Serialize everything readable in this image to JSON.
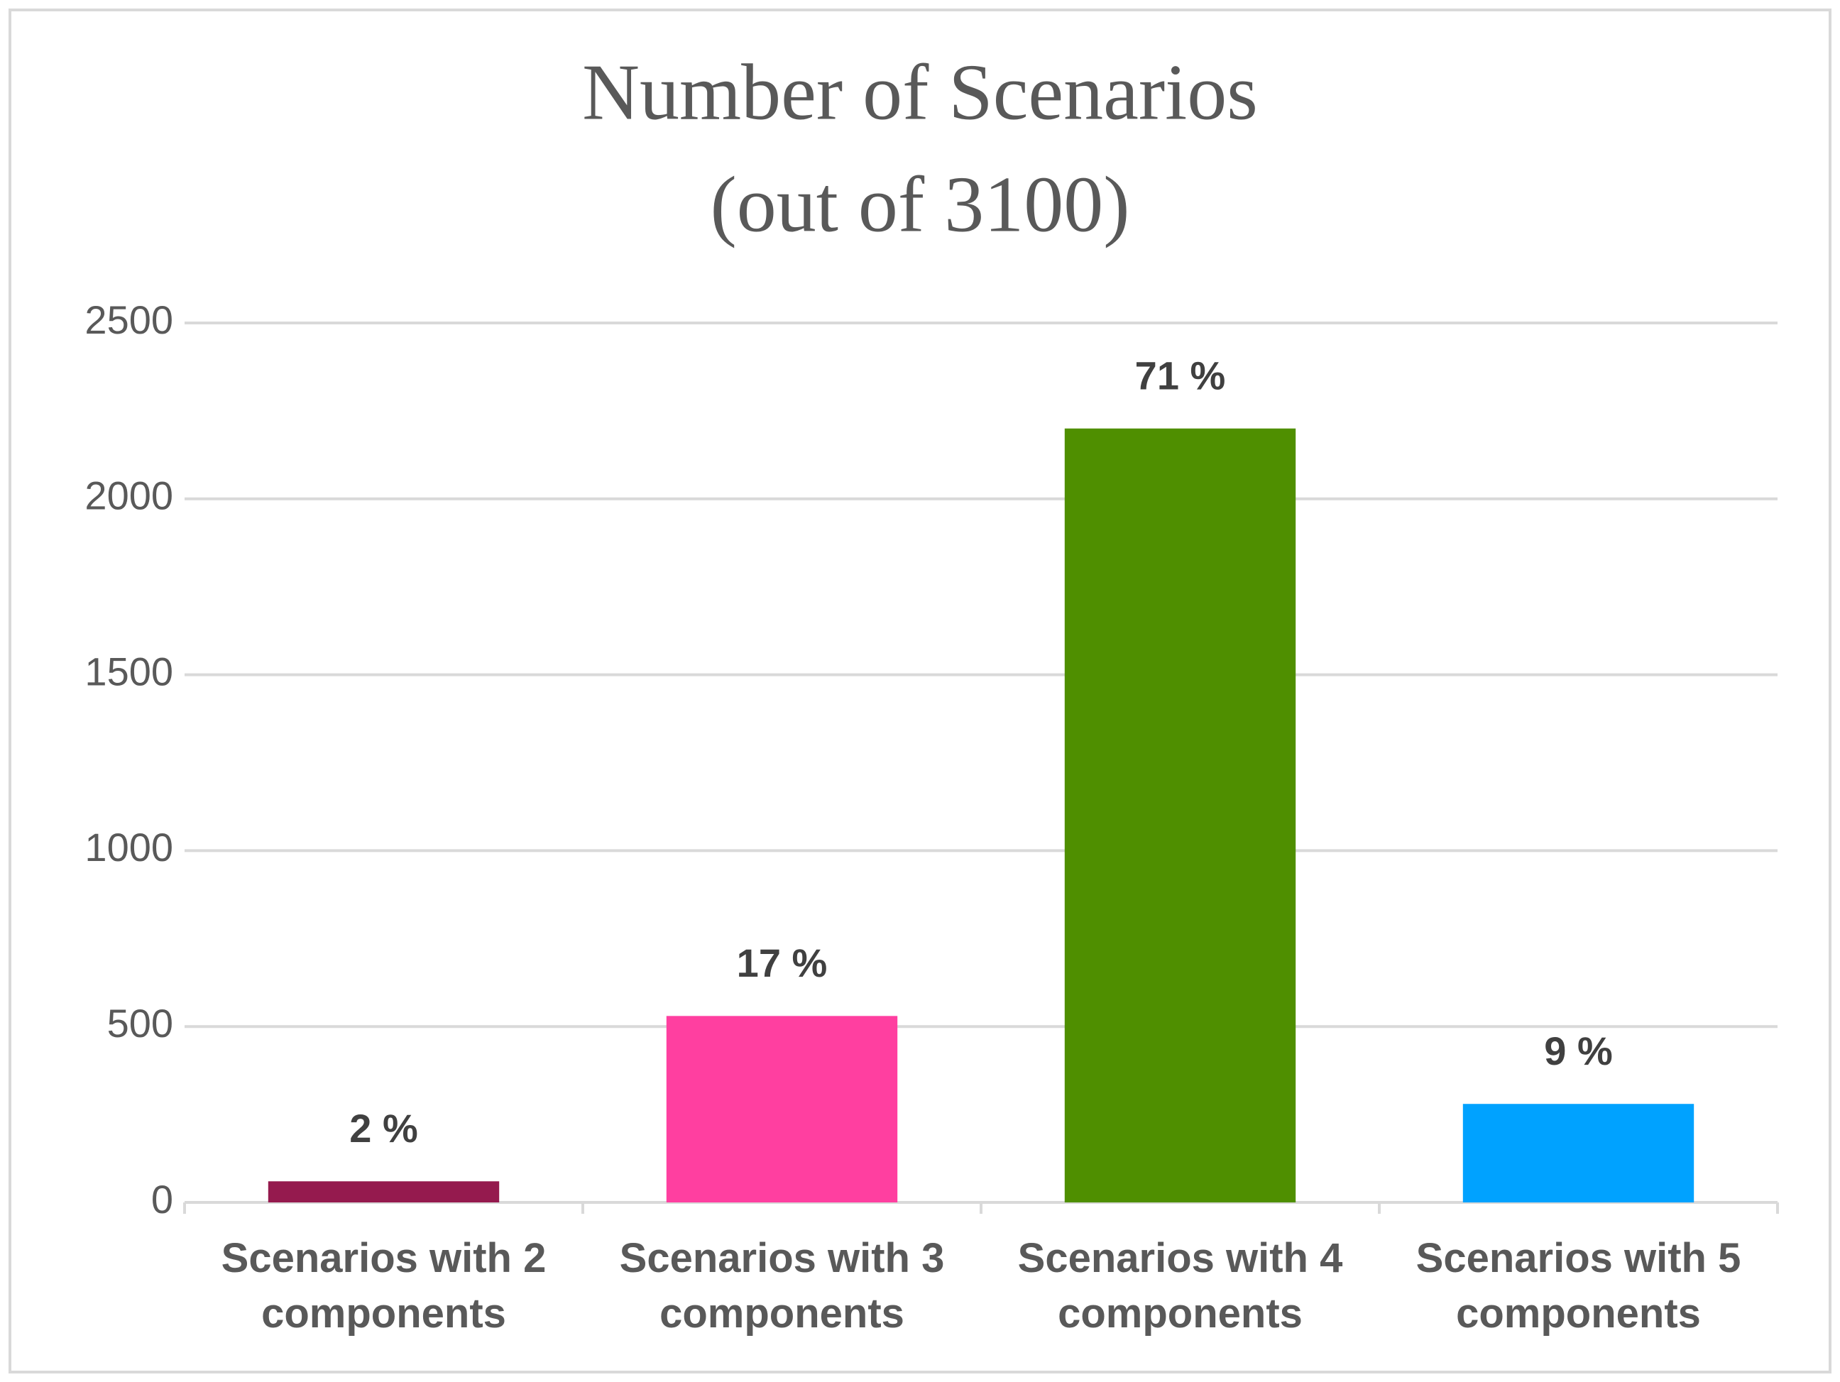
{
  "chart_data": {
    "type": "bar",
    "title": [
      "Number of Scenarios",
      "(out of 3100)"
    ],
    "categories": [
      "Scenarios with 2\ncomponents",
      "Scenarios with 3\ncomponents",
      "Scenarios with 4\ncomponents",
      "Scenarios with 5\ncomponents"
    ],
    "values": [
      60,
      530,
      2200,
      280
    ],
    "percent_labels": [
      "2 %",
      "17 %",
      "71 %",
      "9 %"
    ],
    "colors": [
      "#951a4e",
      "#ff3fa0",
      "#4f8f00",
      "#00a2ff"
    ],
    "ylim": [
      0,
      2500
    ],
    "yticks": [
      0,
      500,
      1000,
      1500,
      2000,
      2500
    ],
    "grid": true
  }
}
